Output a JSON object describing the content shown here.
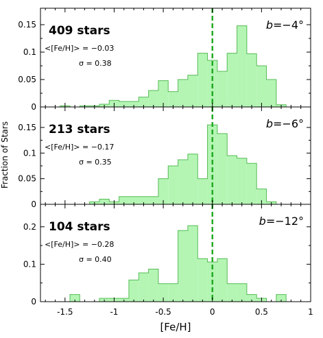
{
  "chart_data": {
    "type": "histogram",
    "xlabel": "[Fe/H]",
    "ylabel": "Fraction of Stars",
    "xlim": [
      -1.75,
      1.0
    ],
    "xticks": [
      "-1.5",
      "-1",
      "-0.5",
      "0",
      "0.5",
      "1"
    ],
    "reference_line": {
      "x": 0,
      "color": "#22aa22",
      "style": "dashed"
    },
    "fill_color": "#b4f5b4",
    "line_color": "#55bb55",
    "bin_width": 0.1,
    "panels": [
      {
        "stars_label": "409 stars",
        "lat_label": "b=−4°",
        "mean_label": "<[Fe/H]> = −0.03",
        "sigma_label": "σ = 0.38",
        "ylim": [
          0,
          0.18
        ],
        "yticks": [
          "0",
          "0.05",
          "0.1",
          "0.15"
        ],
        "bin_starts": [
          -1.65,
          -1.55,
          -1.45,
          -1.35,
          -1.25,
          -1.15,
          -1.05,
          -0.95,
          -0.85,
          -0.75,
          -0.65,
          -0.55,
          -0.45,
          -0.35,
          -0.25,
          -0.15,
          -0.05,
          0.05,
          0.15,
          0.25,
          0.35,
          0.45,
          0.55,
          0.65,
          0.75
        ],
        "values": [
          0,
          0.002,
          0,
          0.002,
          0.002,
          0.005,
          0.012,
          0.01,
          0.01,
          0.018,
          0.03,
          0.048,
          0.028,
          0.05,
          0.058,
          0.098,
          0.085,
          0.065,
          0.098,
          0.148,
          0.097,
          0.075,
          0.05,
          0.004,
          0
        ]
      },
      {
        "stars_label": "213 stars",
        "lat_label": "b=−6°",
        "mean_label": "<[Fe/H]> = −0.17",
        "sigma_label": "σ = 0.35",
        "ylim": [
          0,
          0.19
        ],
        "yticks": [
          "0",
          "0.05",
          "0.1",
          "0.15"
        ],
        "bin_starts": [
          -1.65,
          -1.55,
          -1.45,
          -1.35,
          -1.25,
          -1.15,
          -1.05,
          -0.95,
          -0.85,
          -0.75,
          -0.65,
          -0.55,
          -0.45,
          -0.35,
          -0.25,
          -0.15,
          -0.05,
          0.05,
          0.15,
          0.25,
          0.35,
          0.45,
          0.55,
          0.65,
          0.75
        ],
        "values": [
          0,
          0,
          0,
          0,
          0.005,
          0.01,
          0.005,
          0.015,
          0.015,
          0.015,
          0.015,
          0.05,
          0.075,
          0.087,
          0.098,
          0.05,
          0.155,
          0.138,
          0.095,
          0.09,
          0.08,
          0.03,
          0.005,
          0,
          0
        ]
      },
      {
        "stars_label": "104 stars",
        "lat_label": "b=−12°",
        "mean_label": "<[Fe/H]> = −0.28",
        "sigma_label": "σ = 0.40",
        "ylim": [
          0,
          0.26
        ],
        "yticks": [
          "0",
          "0.1",
          "0.2"
        ],
        "bin_starts": [
          -1.65,
          -1.55,
          -1.45,
          -1.35,
          -1.25,
          -1.15,
          -1.05,
          -0.95,
          -0.85,
          -0.75,
          -0.65,
          -0.55,
          -0.45,
          -0.35,
          -0.25,
          -0.15,
          -0.05,
          0.05,
          0.15,
          0.25,
          0.35,
          0.45,
          0.55,
          0.65,
          0.75
        ],
        "values": [
          0,
          0,
          0.019,
          0,
          0,
          0.009,
          0.009,
          0.009,
          0.058,
          0.077,
          0.087,
          0.048,
          0.048,
          0.19,
          0.203,
          0.115,
          0.106,
          0.115,
          0.048,
          0.048,
          0.019,
          0.009,
          0,
          0.019,
          0
        ]
      }
    ]
  }
}
